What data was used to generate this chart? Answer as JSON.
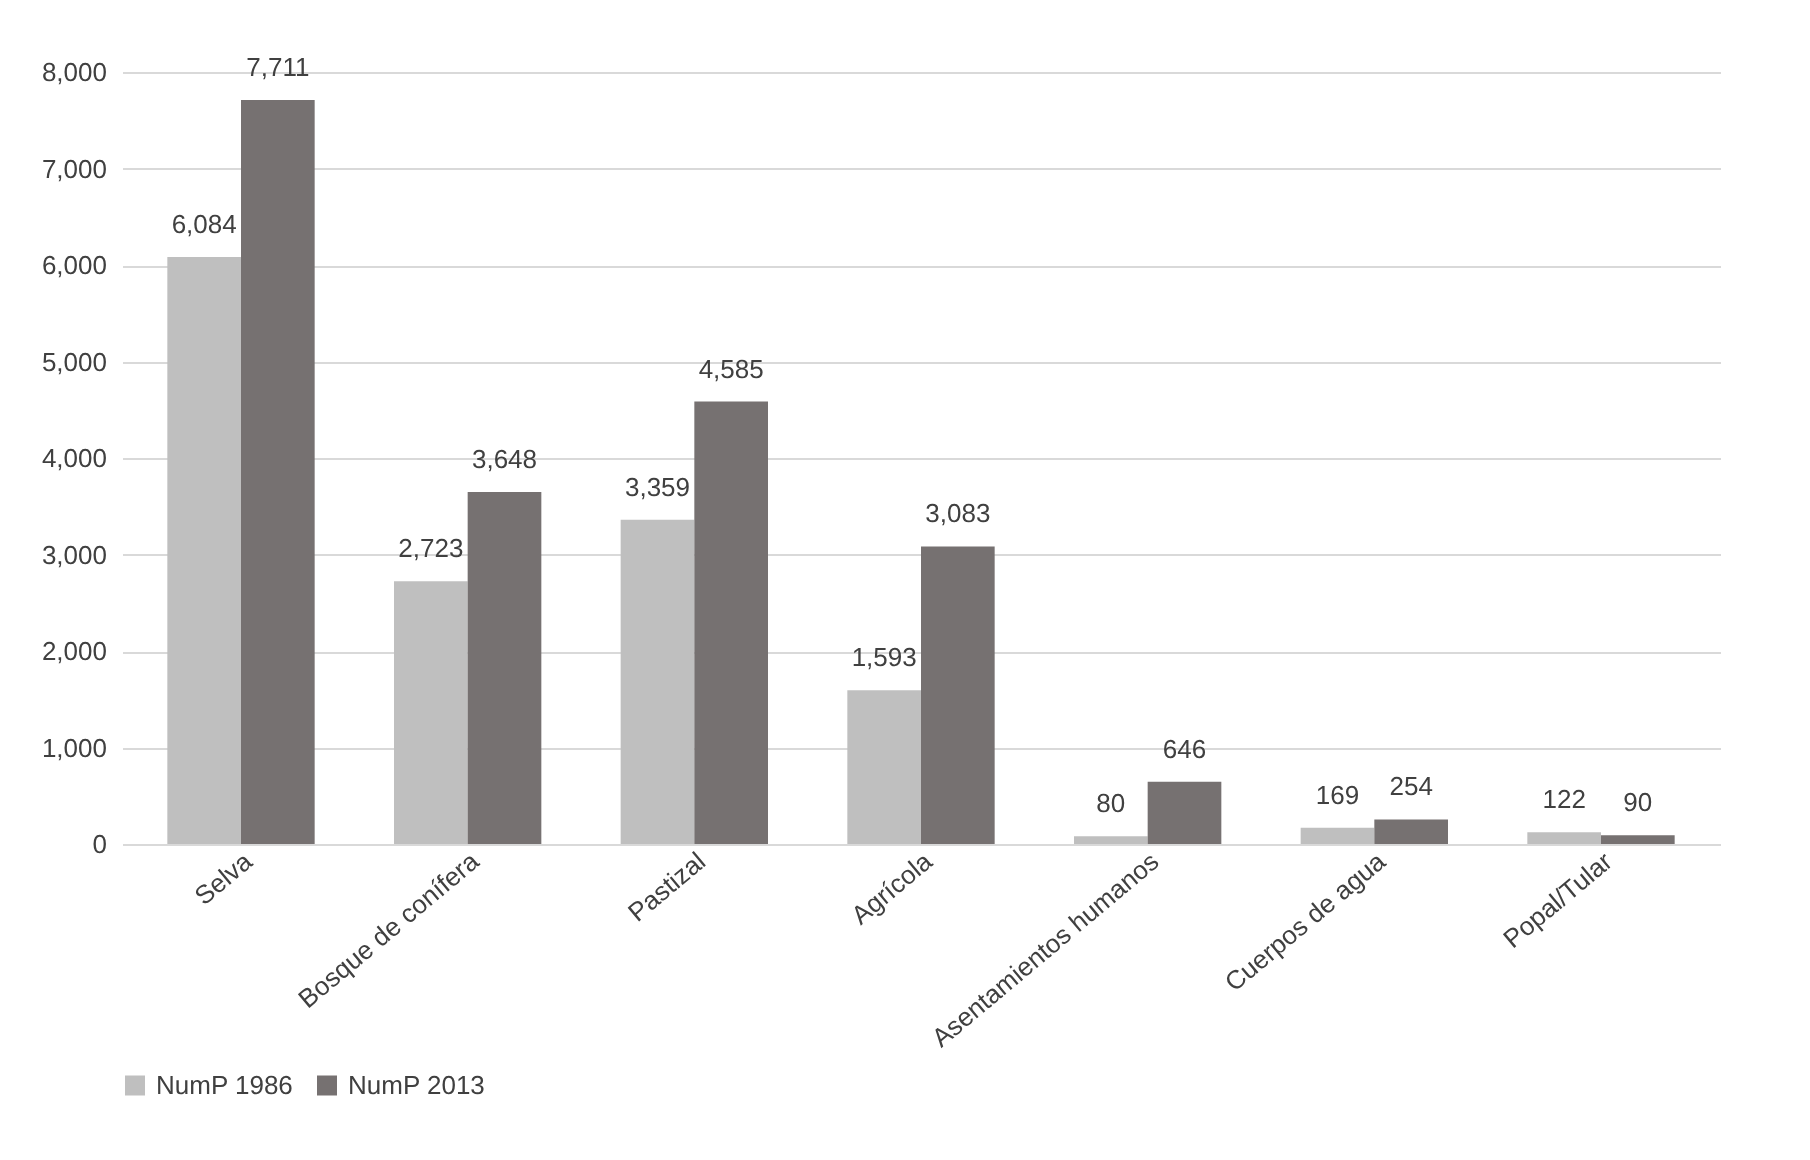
{
  "chart_data": {
    "type": "bar",
    "categories": [
      "Selva",
      "Bosque de conífera",
      "Pastizal",
      "Agrícola",
      "Asentamientos humanos",
      "Cuerpos de agua",
      "Popal/Tular"
    ],
    "series": [
      {
        "name": "NumP 1986",
        "color": "#bfbfbf",
        "values": [
          6084,
          2723,
          3359,
          1593,
          80,
          169,
          122
        ],
        "value_labels": [
          "6,084",
          "2,723",
          "3,359",
          "1,593",
          "80",
          "169",
          "122"
        ]
      },
      {
        "name": "NumP 2013",
        "color": "#767171",
        "values": [
          7711,
          3648,
          4585,
          3083,
          646,
          254,
          90
        ],
        "value_labels": [
          "7,711",
          "3,648",
          "4,585",
          "3,083",
          "646",
          "254",
          "90"
        ]
      }
    ],
    "ylim": [
      0,
      8000
    ],
    "yticks": [
      0,
      {
        "value": 1000,
        "label": "1,000"
      },
      {
        "value": 2000,
        "label": "2,000"
      },
      {
        "value": 3000,
        "label": "3,000"
      },
      {
        "value": 4000,
        "label": "4,000"
      },
      {
        "value": 5000,
        "label": "5,000"
      },
      {
        "value": 6000,
        "label": "6,000"
      },
      {
        "value": 7000,
        "label": "7,000"
      },
      {
        "value": 8000,
        "label": "8,000"
      }
    ],
    "grid": "y",
    "legend": "bottom"
  }
}
